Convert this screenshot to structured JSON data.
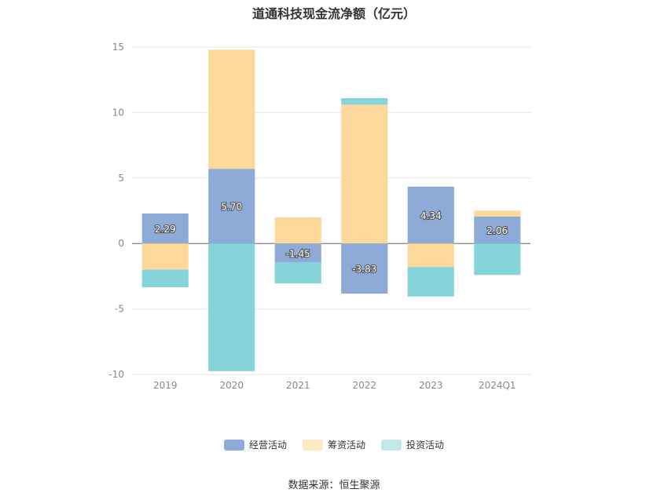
{
  "chart_data": {
    "type": "bar",
    "stacked": true,
    "title": "道通科技现金流净额（亿元）",
    "categories": [
      "2019",
      "2020",
      "2021",
      "2022",
      "2023",
      "2024Q1"
    ],
    "series": [
      {
        "name": "经营活动",
        "color": "#8eabd8",
        "values": [
          2.29,
          5.7,
          -1.45,
          -3.83,
          4.34,
          2.06
        ],
        "labels": [
          "2.29",
          "5.70",
          "-1.45",
          "-3.83",
          "4.34",
          "2.06"
        ]
      },
      {
        "name": "筹资活动",
        "color": "#fdd89b",
        "values": [
          -2.0,
          9.1,
          2.0,
          10.6,
          -1.8,
          0.45
        ]
      },
      {
        "name": "投资活动",
        "color": "#85d4d9",
        "values": [
          -1.35,
          -9.75,
          -1.6,
          0.5,
          -2.25,
          -2.4
        ]
      }
    ],
    "y_ticks": [
      "15",
      "10",
      "5",
      "0",
      "-5",
      "-10"
    ],
    "ylim": [
      -10,
      15
    ],
    "grid": true,
    "legend_position": "bottom"
  },
  "legend_items": [
    "经营活动",
    "筹资活动",
    "投资活动"
  ],
  "source_text": "数据来源：恒生聚源"
}
